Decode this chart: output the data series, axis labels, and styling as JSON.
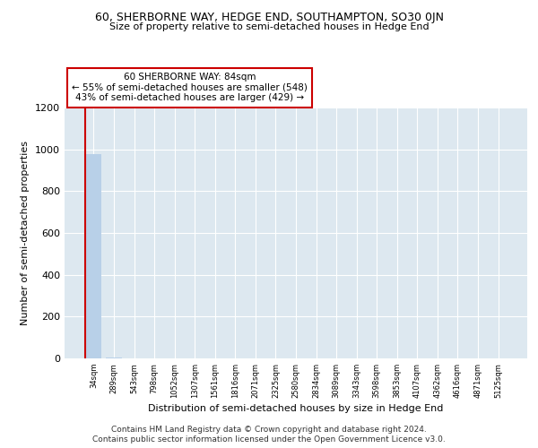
{
  "title1": "60, SHERBORNE WAY, HEDGE END, SOUTHAMPTON, SO30 0JN",
  "title2": "Size of property relative to semi-detached houses in Hedge End",
  "xlabel": "Distribution of semi-detached houses by size in Hedge End",
  "ylabel": "Number of semi-detached properties",
  "property_size": 84,
  "property_label": "60 SHERBORNE WAY: 84sqm",
  "pct_smaller": 55,
  "pct_larger": 43,
  "count_smaller": 548,
  "count_larger": 429,
  "bin_labels": [
    "34sqm",
    "289sqm",
    "543sqm",
    "798sqm",
    "1052sqm",
    "1307sqm",
    "1561sqm",
    "1816sqm",
    "2071sqm",
    "2325sqm",
    "2580sqm",
    "2834sqm",
    "3089sqm",
    "3343sqm",
    "3598sqm",
    "3853sqm",
    "4107sqm",
    "4362sqm",
    "4616sqm",
    "4871sqm",
    "5125sqm"
  ],
  "bar_values": [
    977,
    3,
    2,
    1,
    1,
    1,
    1,
    1,
    1,
    1,
    1,
    1,
    1,
    1,
    1,
    1,
    1,
    1,
    1,
    1,
    1
  ],
  "property_bin_index": 0,
  "annotation_box_color": "#cc0000",
  "bar_color": "#b8d0e8",
  "property_line_color": "#cc0000",
  "bg_color": "#dde8f0",
  "grid_color": "#c0cdd8",
  "ylim": [
    0,
    1200
  ],
  "yticks": [
    0,
    200,
    400,
    600,
    800,
    1000,
    1200
  ],
  "footer1": "Contains HM Land Registry data © Crown copyright and database right 2024.",
  "footer2": "Contains public sector information licensed under the Open Government Licence v3.0."
}
